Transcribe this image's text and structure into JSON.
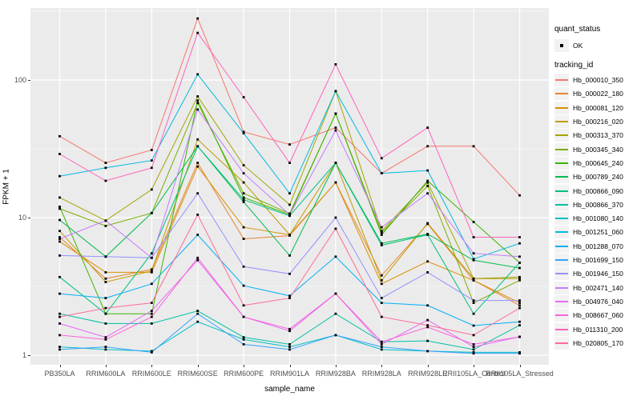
{
  "figure": {
    "background": "#FFFFFF",
    "panel_background": "#EBEBEB",
    "grid_color": "#FFFFFF",
    "point_color": "#000000",
    "tick_color": "#333333",
    "tick_label_color": "#4D4D4D",
    "legend_key_fill": "#F2F2F2"
  },
  "legend": {
    "quant_status": {
      "title": "quant_status",
      "items": [
        {
          "label": "OK",
          "marker": "black-point"
        }
      ]
    },
    "tracking_id": {
      "title": "tracking_id"
    }
  },
  "chart_data": {
    "type": "line",
    "title": "",
    "xlabel": "sample_name",
    "ylabel": "FPKM + 1",
    "yscale": "log10",
    "yticks": [
      1,
      10,
      100
    ],
    "ytick_labels": [
      "1",
      "10",
      "100"
    ],
    "yminor": [
      3.162,
      31.62,
      316.2
    ],
    "ylim": [
      0.85,
      340
    ],
    "grid": true,
    "legend_position": "right",
    "categories": [
      "PB350LA",
      "RRIM600LA",
      "RRIM600LE",
      "RRIM600SE",
      "RRIM600PE",
      "RRIM901LA",
      "RRIM928BA",
      "RRIM928LA",
      "RRIM928LE",
      "RRII105LA_Control",
      "RRII105LA_Stressed"
    ],
    "series": [
      {
        "name": "Hb_000010_350",
        "color": "#F8766D",
        "values": [
          39,
          25,
          31,
          280,
          42,
          34,
          45,
          21,
          33,
          33,
          14.5
        ]
      },
      {
        "name": "Hb_000022_180",
        "color": "#EA8331",
        "values": [
          7.2,
          3.6,
          4.2,
          25,
          7.0,
          7.4,
          18,
          3.8,
          9.0,
          3.5,
          2.3
        ]
      },
      {
        "name": "Hb_000081_120",
        "color": "#D89000",
        "values": [
          6.7,
          4.0,
          4.0,
          23.5,
          8.5,
          7.5,
          18,
          3.3,
          4.8,
          3.5,
          2.4
        ]
      },
      {
        "name": "Hb_000216_020",
        "color": "#C09B00",
        "values": [
          8.0,
          3.4,
          4.1,
          37,
          18,
          7.5,
          25,
          3.5,
          9.1,
          3.6,
          3.6
        ]
      },
      {
        "name": "Hb_000313_370",
        "color": "#A3A500",
        "values": [
          14,
          9.5,
          16,
          76,
          24,
          12.4,
          83,
          8.0,
          18,
          3.6,
          3.7
        ]
      },
      {
        "name": "Hb_000345_340",
        "color": "#7CAE00",
        "values": [
          11.6,
          8.7,
          10.8,
          68,
          15,
          10.7,
          57,
          7.8,
          17,
          2.4,
          3.5
        ]
      },
      {
        "name": "Hb_000645_240",
        "color": "#39B600",
        "values": [
          12,
          2.0,
          2.0,
          71,
          14,
          10.5,
          57,
          7.5,
          18.5,
          9.3,
          4.7
        ]
      },
      {
        "name": "Hb_000789_240",
        "color": "#00BB4E",
        "values": [
          9.6,
          5.2,
          10.8,
          33,
          13,
          5.3,
          25,
          6.5,
          7.6,
          4.9,
          4.3
        ]
      },
      {
        "name": "Hb_000866_090",
        "color": "#00BF7D",
        "values": [
          3.7,
          2.0,
          5.5,
          33,
          13.5,
          10.3,
          25,
          6.3,
          7.5,
          2.0,
          4.7
        ]
      },
      {
        "name": "Hb_000866_370",
        "color": "#00C1A3",
        "values": [
          2.0,
          1.7,
          1.7,
          2.1,
          1.35,
          1.2,
          2.0,
          1.25,
          1.27,
          1.1,
          1.65
        ]
      },
      {
        "name": "Hb_001080_140",
        "color": "#00BFC4",
        "values": [
          1.15,
          1.1,
          1.07,
          1.75,
          1.3,
          1.15,
          1.4,
          1.1,
          1.07,
          1.05,
          1.05
        ]
      },
      {
        "name": "Hb_001251_060",
        "color": "#00BAE0",
        "values": [
          20,
          23,
          26,
          110,
          41,
          15,
          83,
          21,
          22,
          5.0,
          6.5
        ]
      },
      {
        "name": "Hb_001288_070",
        "color": "#00B0F6",
        "values": [
          2.8,
          2.6,
          3.3,
          7.5,
          3.2,
          2.7,
          5.2,
          2.4,
          2.3,
          1.64,
          1.75
        ]
      },
      {
        "name": "Hb_001699_150",
        "color": "#35A2FF",
        "values": [
          1.1,
          1.15,
          1.05,
          2.0,
          1.2,
          1.1,
          1.4,
          1.15,
          1.07,
          1.03,
          1.03
        ]
      },
      {
        "name": "Hb_001946_150",
        "color": "#9590FF",
        "values": [
          5.3,
          5.2,
          5.1,
          15,
          4.4,
          3.9,
          10,
          2.6,
          4.0,
          2.5,
          2.5
        ]
      },
      {
        "name": "Hb_002471_140",
        "color": "#C77CFF",
        "values": [
          7.0,
          9.5,
          5.1,
          61,
          21,
          10.5,
          43,
          8.5,
          15,
          5.5,
          5.2
        ]
      },
      {
        "name": "Hb_004976_040",
        "color": "#E76BF3",
        "values": [
          1.7,
          1.35,
          2.1,
          4.9,
          1.9,
          1.5,
          2.8,
          1.2,
          1.8,
          1.15,
          1.36
        ]
      },
      {
        "name": "Hb_008667_060",
        "color": "#FA62DB",
        "values": [
          1.4,
          1.3,
          1.9,
          5.1,
          1.9,
          1.55,
          2.8,
          1.25,
          1.6,
          1.2,
          1.36
        ]
      },
      {
        "name": "Hb_011310_200",
        "color": "#FF62BC",
        "values": [
          29,
          18.5,
          23,
          220,
          75,
          25,
          130,
          27,
          45,
          7.2,
          7.2
        ]
      },
      {
        "name": "Hb_020805_170",
        "color": "#FF6A98",
        "values": [
          1.9,
          2.2,
          2.4,
          10.5,
          2.3,
          2.6,
          8.3,
          1.9,
          1.65,
          1.4,
          2.2
        ]
      }
    ]
  }
}
